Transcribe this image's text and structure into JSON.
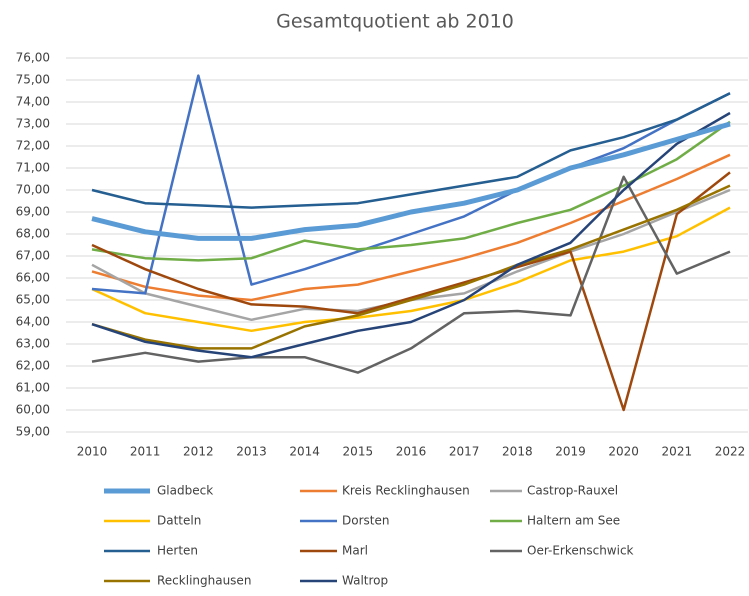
{
  "chart_data": {
    "type": "line",
    "title": "Gesamtquotient ab 2010",
    "categories": [
      "2010",
      "2011",
      "2012",
      "2013",
      "2014",
      "2015",
      "2016",
      "2017",
      "2018",
      "2019",
      "2020",
      "2021",
      "2022"
    ],
    "ylim": [
      59,
      76
    ],
    "yticks": [
      {
        "value": 59,
        "label": "59,00"
      },
      {
        "value": 60,
        "label": "60,00"
      },
      {
        "value": 61,
        "label": "61,00"
      },
      {
        "value": 62,
        "label": "62,00"
      },
      {
        "value": 63,
        "label": "63,00"
      },
      {
        "value": 64,
        "label": "64,00"
      },
      {
        "value": 65,
        "label": "65,00"
      },
      {
        "value": 66,
        "label": "66,00"
      },
      {
        "value": 67,
        "label": "67,00"
      },
      {
        "value": 68,
        "label": "68,00"
      },
      {
        "value": 69,
        "label": "69,00"
      },
      {
        "value": 70,
        "label": "70,00"
      },
      {
        "value": 71,
        "label": "71,00"
      },
      {
        "value": 72,
        "label": "72,00"
      },
      {
        "value": 73,
        "label": "73,00"
      },
      {
        "value": 74,
        "label": "74,00"
      },
      {
        "value": 75,
        "label": "75,00"
      },
      {
        "value": 76,
        "label": "76,00"
      }
    ],
    "grid": true,
    "legend": "bottom",
    "series": [
      {
        "name": "Gladbeck",
        "color": "#5b9bd5",
        "width": 5,
        "values": [
          68.7,
          68.1,
          67.8,
          67.8,
          68.2,
          68.4,
          69.0,
          69.4,
          70.0,
          71.0,
          71.6,
          72.3,
          73.0
        ]
      },
      {
        "name": "Kreis Recklinghausen",
        "color": "#ed7d31",
        "width": 2.5,
        "values": [
          66.3,
          65.6,
          65.2,
          65.0,
          65.5,
          65.7,
          66.3,
          66.9,
          67.6,
          68.5,
          69.5,
          70.5,
          71.6
        ]
      },
      {
        "name": "Castrop-Rauxel",
        "color": "#a5a5a5",
        "width": 2.5,
        "values": [
          66.6,
          65.3,
          64.7,
          64.1,
          64.6,
          64.5,
          65.0,
          65.3,
          66.3,
          67.2,
          68.0,
          69.0,
          70.0
        ]
      },
      {
        "name": "Datteln",
        "color": "#ffc000",
        "width": 2.5,
        "values": [
          65.5,
          64.4,
          64.0,
          63.6,
          64.0,
          64.2,
          64.5,
          65.0,
          65.8,
          66.8,
          67.2,
          67.9,
          69.2
        ]
      },
      {
        "name": "Dorsten",
        "color": "#4472c4",
        "width": 2.5,
        "values": [
          65.5,
          65.3,
          75.2,
          65.7,
          66.4,
          67.2,
          68.0,
          68.8,
          70.0,
          71.0,
          71.9,
          73.2,
          74.4
        ]
      },
      {
        "name": "Haltern am See",
        "color": "#70ad47",
        "width": 2.5,
        "values": [
          67.3,
          66.9,
          66.8,
          66.9,
          67.7,
          67.3,
          67.5,
          67.8,
          68.5,
          69.1,
          70.2,
          71.4,
          73.1
        ]
      },
      {
        "name": "Herten",
        "color": "#255e91",
        "width": 2.5,
        "values": [
          70.0,
          69.4,
          69.3,
          69.2,
          69.3,
          69.4,
          69.8,
          70.2,
          70.6,
          71.8,
          72.4,
          73.2,
          74.4
        ]
      },
      {
        "name": "Marl",
        "color": "#9e480e",
        "width": 2.5,
        "values": [
          67.5,
          66.4,
          65.5,
          64.8,
          64.7,
          64.4,
          65.1,
          65.8,
          66.5,
          67.2,
          60.0,
          68.9,
          70.8
        ]
      },
      {
        "name": "Oer-Erkenschwick",
        "color": "#636363",
        "width": 2.5,
        "values": [
          62.2,
          62.6,
          62.2,
          62.4,
          62.4,
          61.7,
          62.8,
          64.4,
          64.5,
          64.3,
          70.6,
          66.2,
          67.2
        ]
      },
      {
        "name": "Recklinghausen",
        "color": "#997300",
        "width": 2.5,
        "values": [
          63.9,
          63.2,
          62.8,
          62.8,
          63.8,
          64.3,
          65.0,
          65.7,
          66.6,
          67.3,
          68.2,
          69.1,
          70.2
        ]
      },
      {
        "name": "Waltrop",
        "color": "#264478",
        "width": 2.5,
        "values": [
          63.9,
          63.1,
          62.7,
          62.4,
          63.0,
          63.6,
          64.0,
          65.0,
          66.6,
          67.6,
          70.0,
          72.1,
          73.5
        ]
      }
    ]
  }
}
